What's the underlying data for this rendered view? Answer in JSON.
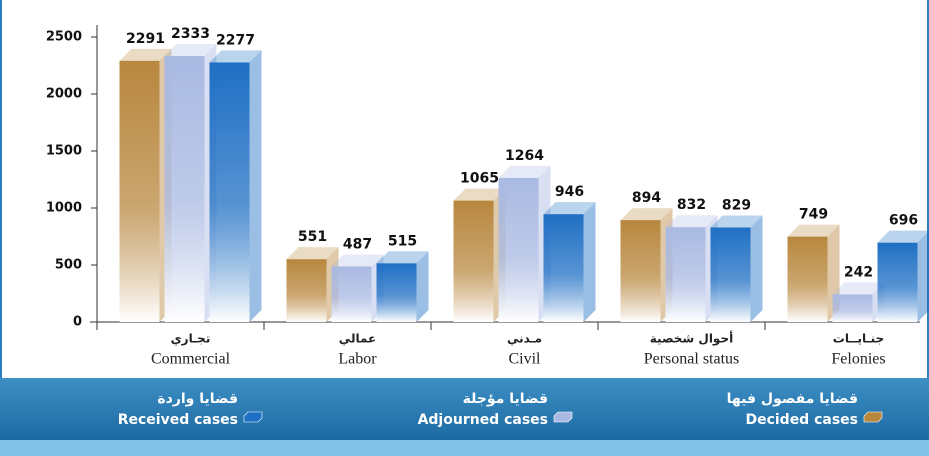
{
  "chart_data": {
    "type": "bar3d",
    "categories": [
      "Commercial",
      "Labor",
      "Civil",
      "Personal status",
      "Felonies"
    ],
    "categories_ar": [
      "تجـاري",
      "عمالي",
      "مـدني",
      "أحوال شخصية",
      "جنـايــات"
    ],
    "series": [
      {
        "name": "Decided cases",
        "name_ar": "قضايا مفصول فيها",
        "color": "#b8873e",
        "values": [
          2291,
          551,
          1065,
          894,
          749
        ]
      },
      {
        "name": "Adjourned cases",
        "name_ar": "قضايا مؤجلة",
        "color": "#a9b9e2",
        "values": [
          2333,
          487,
          1264,
          832,
          242
        ]
      },
      {
        "name": "Received cases",
        "name_ar": "قضايا واردة",
        "color": "#1f6fc4",
        "values": [
          2277,
          515,
          946,
          829,
          696
        ]
      }
    ],
    "ylim": [
      0,
      2500
    ],
    "yticks": [
      0,
      500,
      1000,
      1500,
      2000,
      2500
    ]
  }
}
